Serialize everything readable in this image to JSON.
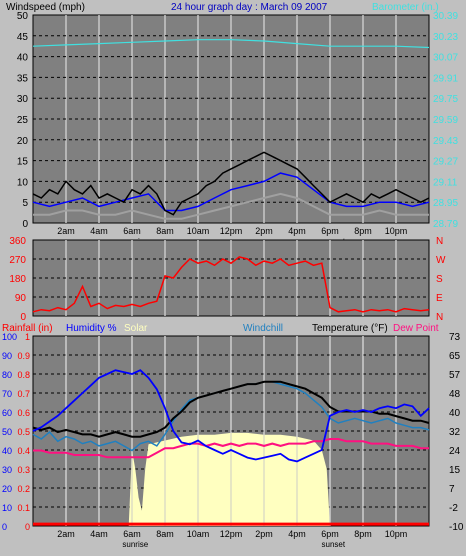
{
  "header": {
    "left_label": "Windspeed (mph)",
    "title": "24 hour graph day : March 09 2007",
    "right_label": "Barometer (in.)"
  },
  "colors": {
    "bg": "#c0c0c0",
    "plot_bg": "#808080",
    "grid_v": "#c8c8c8",
    "grid_h": "#000000",
    "wind_avg": "#000000",
    "wind_gust": "#0000ff",
    "wind_low": "#a0a0a0",
    "baro": "#40e0e0",
    "dir": "#ff0000",
    "rain": "#ff0000",
    "humidity": "#0000ff",
    "solar": "#ffffc0",
    "windchill": "#2080c0",
    "temp": "#000000",
    "dew": "#ff1080"
  },
  "x_labels": [
    "2am",
    "4am",
    "6am",
    "8am",
    "10am",
    "12pm",
    "2pm",
    "4pm",
    "6pm",
    "8pm",
    "10pm"
  ],
  "x_sublabels": {
    "sunrise": "sunrise",
    "sunset": "sunset"
  },
  "chart_data": [
    {
      "type": "line",
      "name": "wind-barometer",
      "x_range_hours": [
        0,
        24
      ],
      "left_axis": {
        "label": "Windspeed (mph)",
        "ticks": [
          "50",
          "45",
          "40",
          "35",
          "30",
          "25",
          "20",
          "15",
          "10",
          "5",
          "0"
        ],
        "ylim": [
          0,
          50
        ]
      },
      "right_axis": {
        "label": "Barometer (in.)",
        "ticks": [
          "30.39",
          "30.23",
          "30.07",
          "29.91",
          "29.75",
          "29.59",
          "29.43",
          "29.27",
          "29.11",
          "28.95",
          "28.79"
        ],
        "ylim": [
          28.79,
          30.39
        ]
      },
      "series": [
        {
          "name": "wind_avg",
          "x": [
            0,
            0.5,
            1,
            1.5,
            2,
            2.5,
            3,
            3.5,
            4,
            4.5,
            5,
            5.5,
            6,
            6.5,
            7,
            7.5,
            8,
            8.5,
            9,
            9.5,
            10,
            10.5,
            11,
            11.5,
            12,
            12.5,
            13,
            13.5,
            14,
            14.5,
            15,
            15.5,
            16,
            16.5,
            17,
            17.5,
            18,
            18.5,
            19,
            19.5,
            20,
            20.5,
            21,
            21.5,
            22,
            22.5,
            23,
            23.5,
            24
          ],
          "values": [
            7,
            6,
            8,
            7,
            10,
            8,
            7,
            9,
            6,
            7,
            6,
            5,
            8,
            7,
            9,
            7,
            3,
            2,
            5,
            6,
            7,
            9,
            10,
            12,
            13,
            14,
            15,
            16,
            17,
            16,
            15,
            14,
            13,
            11,
            9,
            7,
            5,
            6,
            7,
            6,
            5,
            7,
            6,
            7,
            8,
            7,
            6,
            5,
            6
          ]
        },
        {
          "name": "wind_gust",
          "x": [
            0,
            1,
            2,
            3,
            4,
            5,
            6,
            7,
            8,
            9,
            10,
            11,
            12,
            13,
            14,
            15,
            16,
            17,
            18,
            19,
            20,
            21,
            22,
            23,
            24
          ],
          "values": [
            5,
            4,
            5,
            6,
            4,
            5,
            6,
            7,
            3,
            3,
            4,
            6,
            8,
            9,
            10,
            12,
            11,
            8,
            5,
            4,
            4,
            5,
            5,
            4,
            5
          ]
        },
        {
          "name": "wind_low",
          "x": [
            0,
            1,
            2,
            3,
            4,
            5,
            6,
            7,
            8,
            9,
            10,
            11,
            12,
            13,
            14,
            15,
            16,
            17,
            18,
            19,
            20,
            21,
            22,
            23,
            24
          ],
          "values": [
            2,
            2,
            3,
            3,
            2,
            2,
            3,
            2,
            1,
            1,
            2,
            3,
            4,
            5,
            6,
            7,
            6,
            4,
            2,
            2,
            2,
            3,
            2,
            2,
            2
          ]
        },
        {
          "name": "barometer",
          "x": [
            0,
            2,
            4,
            6,
            8,
            10,
            12,
            14,
            16,
            18,
            20,
            22,
            24
          ],
          "values": [
            30.15,
            30.16,
            30.17,
            30.18,
            30.19,
            30.2,
            30.2,
            30.19,
            30.17,
            30.15,
            30.15,
            30.15,
            30.14
          ]
        }
      ]
    },
    {
      "type": "line",
      "name": "wind-direction",
      "x_range_hours": [
        0,
        24
      ],
      "left_axis": {
        "ticks": [
          "360",
          "270",
          "180",
          "90",
          "0"
        ],
        "ylim": [
          0,
          360
        ]
      },
      "right_axis": {
        "ticks": [
          "N",
          "W",
          "S",
          "E",
          "N"
        ]
      },
      "series": [
        {
          "name": "direction",
          "x": [
            0,
            0.5,
            1,
            1.5,
            2,
            2.5,
            3,
            3.5,
            4,
            4.5,
            5,
            5.5,
            6,
            6.5,
            7,
            7.5,
            8,
            8.5,
            9,
            9.5,
            10,
            10.5,
            11,
            11.5,
            12,
            12.5,
            13,
            13.5,
            14,
            14.5,
            15,
            15.5,
            16,
            16.5,
            17,
            17.5,
            18,
            18.5,
            19,
            19.5,
            20,
            20.5,
            21,
            21.5,
            22,
            22.5,
            23,
            23.5,
            24
          ],
          "values": [
            20,
            30,
            25,
            40,
            30,
            60,
            140,
            45,
            60,
            35,
            50,
            45,
            55,
            45,
            60,
            70,
            190,
            180,
            230,
            270,
            250,
            260,
            240,
            270,
            250,
            280,
            270,
            240,
            260,
            250,
            270,
            240,
            250,
            260,
            240,
            250,
            40,
            20,
            25,
            30,
            20,
            30,
            25,
            30,
            20,
            35,
            30,
            25,
            30
          ]
        }
      ]
    },
    {
      "type": "line",
      "name": "temperature-humidity",
      "x_range_hours": [
        0,
        24
      ],
      "axis_header": {
        "rainfall": "Rainfall (in)",
        "humidity": "Humidity %",
        "solar": "Solar",
        "windchill": "Windchill",
        "temperature": "Temperature (°F)",
        "dewpoint": "Dew Point"
      },
      "rain_axis": {
        "ticks": [
          "1",
          "0.9",
          "0.8",
          "0.7",
          "0.6",
          "0.5",
          "0.4",
          "0.3",
          "0.2",
          "0.1",
          "0"
        ],
        "ylim": [
          0,
          1
        ]
      },
      "humidity_axis": {
        "ticks": [
          "100",
          "90",
          "80",
          "70",
          "60",
          "50",
          "40",
          "30",
          "20",
          "10",
          "0"
        ],
        "ylim": [
          0,
          100
        ]
      },
      "temp_axis": {
        "ticks": [
          "73",
          "65",
          "57",
          "48",
          "40",
          "32",
          "24",
          "15",
          "7",
          "-2",
          "-10"
        ],
        "ylim": [
          -10,
          73
        ]
      },
      "series": [
        {
          "name": "solar",
          "x": [
            0,
            5.8,
            6,
            6.2,
            6.4,
            6.6,
            6.8,
            7,
            8,
            9,
            10,
            11,
            12,
            13,
            14,
            15,
            16,
            17,
            17.5,
            17.8,
            18,
            24
          ],
          "values": [
            0,
            0,
            40,
            30,
            15,
            8,
            30,
            43,
            45,
            47,
            48,
            48,
            49,
            49,
            48,
            48,
            47,
            45,
            40,
            30,
            0,
            0
          ]
        },
        {
          "name": "humidity",
          "x": [
            0,
            0.5,
            1,
            1.5,
            2,
            2.5,
            3,
            3.5,
            4,
            4.5,
            5,
            5.5,
            6,
            6.5,
            7,
            7.5,
            8,
            8.5,
            9,
            9.5,
            10,
            10.5,
            11,
            11.5,
            12,
            12.5,
            13,
            13.5,
            14,
            14.5,
            15,
            15.5,
            16,
            16.5,
            17,
            17.5,
            18,
            18.5,
            19,
            19.5,
            20,
            20.5,
            21,
            21.5,
            22,
            22.5,
            23,
            23.5,
            24
          ],
          "values": [
            50,
            52,
            55,
            58,
            62,
            66,
            70,
            74,
            78,
            80,
            82,
            81,
            80,
            82,
            78,
            72,
            62,
            50,
            44,
            43,
            45,
            42,
            40,
            38,
            40,
            38,
            36,
            35,
            36,
            37,
            38,
            35,
            34,
            36,
            38,
            40,
            58,
            60,
            61,
            60,
            61,
            60,
            62,
            63,
            62,
            64,
            63,
            58,
            62
          ]
        },
        {
          "name": "windchill",
          "x": [
            0,
            0.5,
            1,
            1.5,
            2,
            2.5,
            3,
            3.5,
            4,
            4.5,
            5,
            5.5,
            6,
            6.5,
            7,
            7.5,
            8,
            8.5,
            9,
            9.5,
            10,
            10.5,
            11,
            11.5,
            12,
            12.5,
            13,
            13.5,
            14,
            14.5,
            15,
            15.5,
            16,
            16.5,
            17,
            17.5,
            18,
            18.5,
            19,
            19.5,
            20,
            20.5,
            21,
            21.5,
            22,
            22.5,
            23,
            23.5,
            24
          ],
          "values": [
            30,
            28,
            31,
            27,
            29,
            28,
            26,
            27,
            25,
            26,
            27,
            25,
            23,
            26,
            27,
            25,
            30,
            36,
            41,
            45,
            46,
            47,
            48,
            49,
            50,
            51,
            52,
            52,
            53,
            53,
            52,
            51,
            50,
            48,
            45,
            42,
            37,
            35,
            36,
            37,
            36,
            35,
            36,
            37,
            35,
            34,
            33,
            33,
            32
          ]
        },
        {
          "name": "temperature",
          "x": [
            0,
            0.5,
            1,
            1.5,
            2,
            2.5,
            3,
            3.5,
            4,
            4.5,
            5,
            5.5,
            6,
            6.5,
            7,
            7.5,
            8,
            8.5,
            9,
            9.5,
            10,
            10.5,
            11,
            11.5,
            12,
            12.5,
            13,
            13.5,
            14,
            14.5,
            15,
            15.5,
            16,
            16.5,
            17,
            17.5,
            18,
            18.5,
            19,
            19.5,
            20,
            20.5,
            21,
            21.5,
            22,
            22.5,
            23,
            23.5,
            24
          ],
          "values": [
            33,
            32,
            33,
            31,
            32,
            31,
            30,
            30,
            29,
            30,
            31,
            30,
            29,
            29,
            30,
            31,
            33,
            37,
            40,
            44,
            46,
            47,
            48,
            49,
            50,
            51,
            52,
            52,
            53,
            53,
            53,
            52,
            51,
            50,
            48,
            46,
            42,
            40,
            40,
            40,
            40,
            40,
            39,
            39,
            38,
            37,
            36,
            36,
            35
          ]
        },
        {
          "name": "dewpoint",
          "x": [
            0,
            0.5,
            1,
            1.5,
            2,
            2.5,
            3,
            3.5,
            4,
            4.5,
            5,
            5.5,
            6,
            6.5,
            7,
            7.5,
            8,
            8.5,
            9,
            9.5,
            10,
            10.5,
            11,
            11.5,
            12,
            12.5,
            13,
            13.5,
            14,
            14.5,
            15,
            15.5,
            16,
            16.5,
            17,
            17.5,
            18,
            18.5,
            19,
            19.5,
            20,
            20.5,
            21,
            21.5,
            22,
            22.5,
            23,
            23.5,
            24
          ],
          "values": [
            23,
            23,
            22,
            22,
            22,
            21,
            21,
            21,
            21,
            20,
            20,
            20,
            20,
            20,
            20,
            22,
            24,
            24,
            25,
            26,
            26,
            25,
            26,
            25,
            26,
            25,
            26,
            26,
            25,
            26,
            25,
            26,
            26,
            26,
            27,
            27,
            28,
            28,
            27,
            27,
            27,
            26,
            26,
            26,
            25,
            25,
            25,
            24,
            24
          ]
        },
        {
          "name": "rainfall",
          "x": [
            0,
            24
          ],
          "values": [
            0.01,
            0.01
          ]
        }
      ]
    }
  ]
}
